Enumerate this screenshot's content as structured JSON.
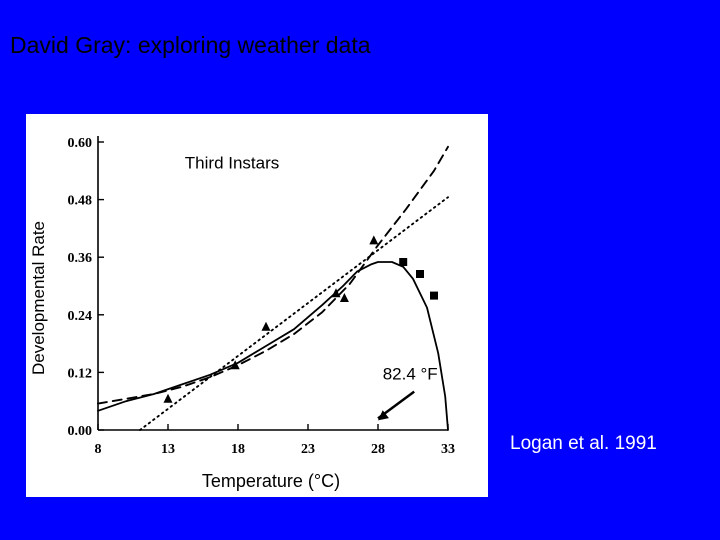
{
  "slide": {
    "title": "David Gray: exploring weather data",
    "citation": "Logan et al. 1991"
  },
  "colors": {
    "background": "#0000ff",
    "figure_background": "#ffffff",
    "ink": "#000000",
    "citation": "#ffffff"
  },
  "chart_data": {
    "type": "scatter",
    "title": "",
    "xlabel": "Temperature (°C)",
    "ylabel": "Developmental Rate",
    "xlim": [
      8,
      33
    ],
    "ylim": [
      0,
      0.6
    ],
    "x_ticks": [
      8,
      13,
      18,
      23,
      28,
      33
    ],
    "y_ticks": [
      "0.00",
      "0.12",
      "0.24",
      "0.36",
      "0.48",
      "0.60"
    ],
    "grid": false,
    "annotations": [
      {
        "text": "Third Instars",
        "x": 14.2,
        "y": 0.545
      },
      {
        "text": "82.4 °F",
        "x": 30.3,
        "y": 0.105,
        "arrow_to": [
          28,
          0.02
        ]
      }
    ],
    "series": [
      {
        "marker": "triangle",
        "style": "points",
        "x": [
          13,
          17.8,
          20,
          25,
          25.6,
          27.7
        ],
        "y": [
          0.065,
          0.135,
          0.215,
          0.285,
          0.275,
          0.395
        ]
      },
      {
        "marker": "square",
        "style": "points",
        "x": [
          29.8,
          31,
          32
        ],
        "y": [
          0.35,
          0.325,
          0.28
        ]
      },
      {
        "style": "solid",
        "x": [
          8,
          10,
          12,
          14,
          16,
          18,
          20,
          22,
          24,
          25.5,
          26.5,
          27.5,
          28,
          29,
          29.8,
          30.5,
          31.5,
          32.3,
          32.8,
          33
        ],
        "y": [
          0.04,
          0.06,
          0.075,
          0.095,
          0.115,
          0.14,
          0.175,
          0.21,
          0.26,
          0.3,
          0.33,
          0.345,
          0.35,
          0.35,
          0.34,
          0.315,
          0.255,
          0.16,
          0.07,
          0.0
        ]
      },
      {
        "style": "dashed",
        "x": [
          8,
          10,
          12,
          14,
          16,
          18,
          20,
          22,
          24,
          26,
          28,
          30,
          32,
          33
        ],
        "y": [
          0.055,
          0.065,
          0.075,
          0.09,
          0.11,
          0.135,
          0.165,
          0.2,
          0.245,
          0.305,
          0.385,
          0.46,
          0.54,
          0.59
        ]
      },
      {
        "style": "dotted",
        "x": [
          11,
          33
        ],
        "y": [
          0.0,
          0.485
        ]
      }
    ]
  }
}
